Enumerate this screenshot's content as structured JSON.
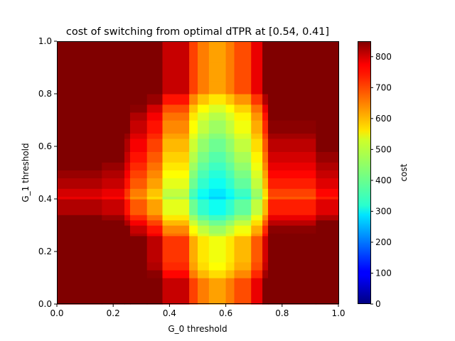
{
  "chart_data": {
    "type": "heatmap",
    "title": "cost of switching from optimal dTPR at [0.54, 0.41]",
    "xlabel": "G_0 threshold",
    "ylabel": "G_1 threshold",
    "xlim": [
      0,
      1
    ],
    "ylim": [
      0,
      1
    ],
    "xticks": [
      "0.0",
      "0.2",
      "0.4",
      "0.6",
      "0.8",
      "1.0"
    ],
    "yticks": [
      "0.0",
      "0.2",
      "0.4",
      "0.6",
      "0.8",
      "1.0"
    ],
    "colorbar": {
      "label": "cost",
      "range": [
        0,
        850
      ],
      "ticks": [
        "0",
        "100",
        "200",
        "300",
        "400",
        "500",
        "600",
        "700",
        "800"
      ],
      "colormap": "jet"
    },
    "x_edges": [
      0,
      0.16,
      0.24,
      0.26,
      0.32,
      0.375,
      0.47,
      0.5,
      0.54,
      0.6,
      0.63,
      0.69,
      0.73,
      0.75,
      0.79,
      0.92,
      1.0
    ],
    "y_edges": [
      0,
      0.1,
      0.13,
      0.16,
      0.26,
      0.27,
      0.3,
      0.32,
      0.34,
      0.4,
      0.41,
      0.44,
      0.48,
      0.51,
      0.54,
      0.58,
      0.63,
      0.65,
      0.7,
      0.73,
      0.76,
      0.8,
      0.85,
      0.92,
      1.0
    ],
    "base_x": [
      780,
      760,
      700,
      640,
      580,
      480,
      380,
      330,
      300,
      330,
      370,
      450,
      560,
      690,
      690,
      740
    ],
    "base_y": [
      760,
      710,
      680,
      670,
      620,
      600,
      560,
      520,
      480,
      430,
      450,
      480,
      500,
      520,
      540,
      560,
      580,
      600,
      620,
      650,
      700,
      760,
      760,
      760
    ],
    "cell_min": 0,
    "cell_max": 850
  }
}
